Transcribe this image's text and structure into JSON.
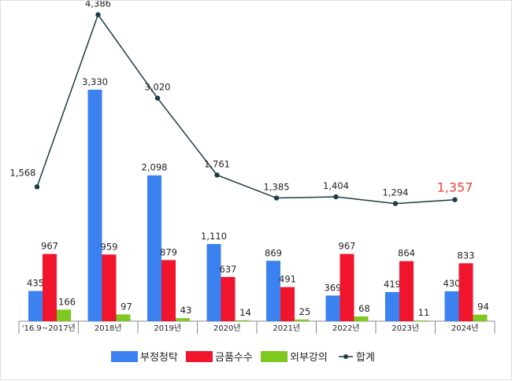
{
  "chart_data": {
    "type": "bar",
    "categories": [
      "'16.9~2017년",
      "2018년",
      "2019년",
      "2020년",
      "2021년",
      "2022년",
      "2023년",
      "2024년"
    ],
    "series": [
      {
        "name": "부정청탁",
        "type": "bar",
        "color": "#3b82f0",
        "values": [
          435,
          3330,
          2098,
          1110,
          869,
          369,
          419,
          430
        ]
      },
      {
        "name": "금품수수",
        "type": "bar",
        "color": "#f0142d",
        "values": [
          967,
          959,
          879,
          637,
          491,
          967,
          864,
          833
        ]
      },
      {
        "name": "외부강의",
        "type": "bar",
        "color": "#7ec820",
        "values": [
          166,
          97,
          43,
          14,
          25,
          68,
          11,
          94
        ]
      },
      {
        "name": "합계",
        "type": "line",
        "color": "#1d3c45",
        "values": [
          1568,
          4386,
          3020,
          1761,
          1385,
          1404,
          1294,
          1357
        ]
      }
    ],
    "highlight": {
      "index": 7,
      "color": "#e8453c"
    },
    "legend": "bottom",
    "grid": false
  }
}
